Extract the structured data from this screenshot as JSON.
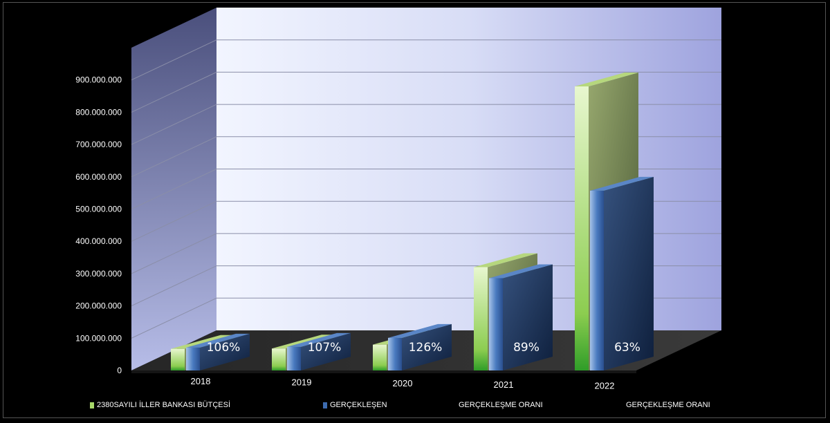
{
  "chart_data": {
    "type": "bar",
    "categories": [
      "2018",
      "2019",
      "2020",
      "2021",
      "2022"
    ],
    "series": [
      {
        "name": "2380SAYILI İLLER BANKASI BÜTÇESİ",
        "values": [
          67000000,
          68000000,
          80000000,
          320000000,
          880000000
        ],
        "color": "#a8d86a"
      },
      {
        "name": "GERÇEKLEŞEN",
        "values": [
          71000000,
          73000000,
          101000000,
          286000000,
          557000000
        ],
        "color": "#3d6bb0"
      }
    ],
    "ratios": [
      "106%",
      "107%",
      "126%",
      "89%",
      "63%"
    ],
    "ratio_series_names": [
      "GERÇEKLEŞME ORANI",
      "GERÇEKLEŞME ORANI"
    ],
    "y_ticks": [
      "0",
      "100.000.000",
      "200.000.000",
      "300.000.000",
      "400.000.000",
      "500.000.000",
      "600.000.000",
      "700.000.000",
      "800.000.000",
      "900.000.000"
    ],
    "ylim": [
      0,
      1000000000
    ],
    "grid": true,
    "legend_position": "bottom"
  }
}
